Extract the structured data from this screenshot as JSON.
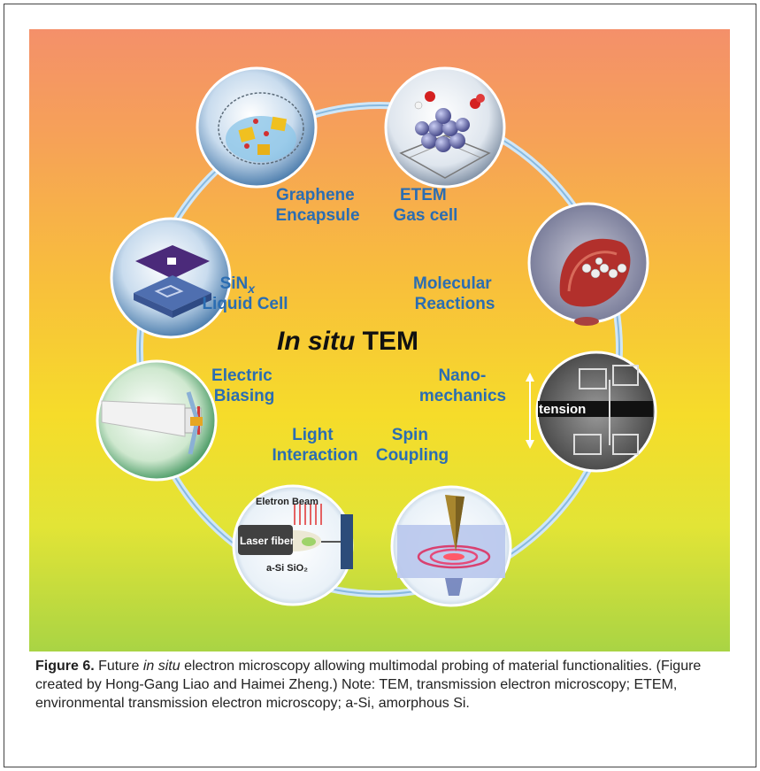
{
  "diagram": {
    "center_title_italic": "In situ",
    "center_title_rest": " TEM",
    "labels": {
      "graphene": [
        "Graphene",
        "Encapsule"
      ],
      "etem": [
        "ETEM",
        "Gas cell"
      ],
      "sinx_line1_main": "SiN",
      "sinx_line1_sub": "x",
      "sinx_line2": "Liquid Cell",
      "molecular": [
        "Molecular",
        "Reactions"
      ],
      "electric": [
        "Electric",
        "Biasing"
      ],
      "nano": [
        "Nano-",
        "mechanics"
      ],
      "light": [
        "Light",
        "Interaction"
      ],
      "spin": [
        "Spin",
        "Coupling"
      ]
    },
    "inset_text": {
      "tension": "tension",
      "electron_beam": "Eletron Beam",
      "laser_fiber": "Laser fiber",
      "asi_sio2": "a-Si SiO₂"
    }
  },
  "caption": {
    "figure_label": "Figure 6.",
    "text_before_italic": "  Future ",
    "italic": "in situ",
    "text_after_italic": " electron microscopy allowing multimodal probing of material functionalities. (Figure created by Hong-Gang Liao and Haimei Zheng.) Note: TEM, transmission electron microscopy; ETEM, environmental transmission electron microscopy; a-Si, amorphous Si."
  }
}
